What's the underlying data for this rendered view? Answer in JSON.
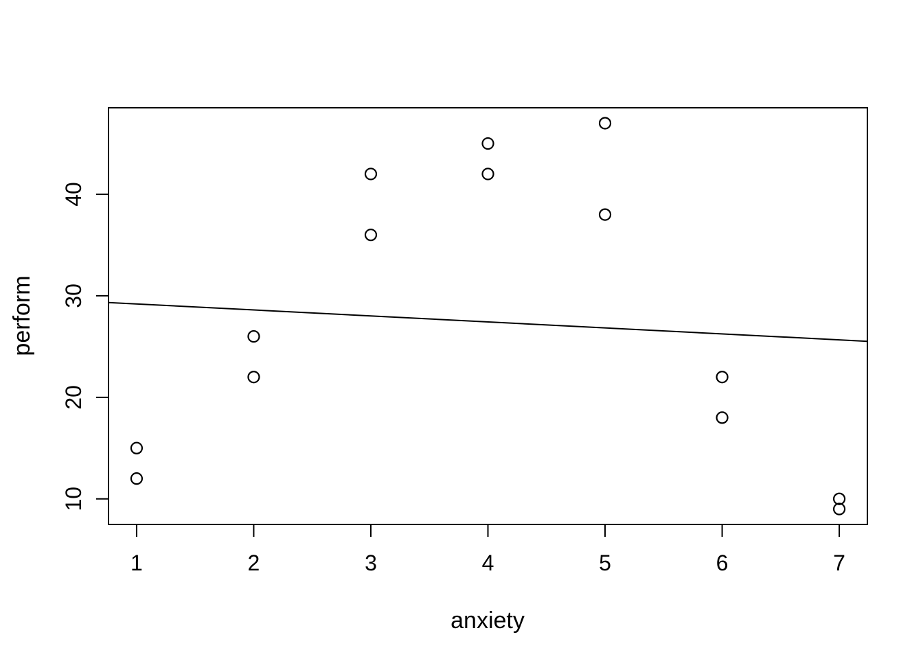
{
  "style": {
    "background": "#ffffff",
    "foreground": "#000000"
  },
  "chart_data": {
    "type": "scatter",
    "title": "",
    "xlabel": "anxiety",
    "ylabel": "perform",
    "marker": "open-circle",
    "grid": false,
    "x_ticks": [
      1,
      2,
      3,
      4,
      5,
      6,
      7
    ],
    "y_ticks": [
      10,
      20,
      30,
      40
    ],
    "xlim": [
      0.76,
      7.24
    ],
    "ylim": [
      7.48,
      48.52
    ],
    "points": [
      {
        "x": 1,
        "y": 15
      },
      {
        "x": 1,
        "y": 12
      },
      {
        "x": 2,
        "y": 26
      },
      {
        "x": 2,
        "y": 22
      },
      {
        "x": 3,
        "y": 42
      },
      {
        "x": 3,
        "y": 36
      },
      {
        "x": 4,
        "y": 45
      },
      {
        "x": 4,
        "y": 42
      },
      {
        "x": 5,
        "y": 47
      },
      {
        "x": 5,
        "y": 38
      },
      {
        "x": 6,
        "y": 22
      },
      {
        "x": 6,
        "y": 18
      },
      {
        "x": 7,
        "y": 10
      },
      {
        "x": 7,
        "y": 9
      }
    ],
    "regression_line": {
      "slope": -0.5893,
      "intercept": 29.7857
    }
  }
}
